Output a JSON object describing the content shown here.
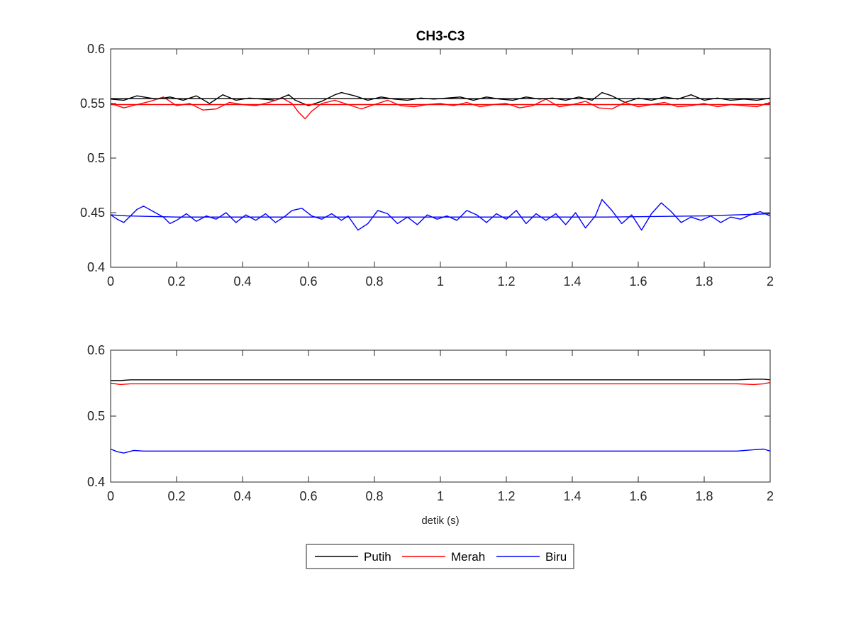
{
  "chart_data": [
    {
      "type": "line",
      "title": "CH3-C3",
      "xlabel": "",
      "ylabel": "",
      "xlim": [
        0,
        2
      ],
      "ylim": [
        0.4,
        0.6
      ],
      "xticks": [
        "0",
        "0.2",
        "0.4",
        "0.6",
        "0.8",
        "1",
        "1.2",
        "1.4",
        "1.6",
        "1.8",
        "2"
      ],
      "yticks": [
        "0.4",
        "0.45",
        "0.5",
        "0.55",
        "0.6"
      ],
      "grid": false,
      "series": [
        {
          "name": "Putih",
          "color": "#000000",
          "x": [
            0,
            0.04,
            0.08,
            0.1,
            0.14,
            0.18,
            0.22,
            0.26,
            0.3,
            0.34,
            0.38,
            0.42,
            0.46,
            0.5,
            0.54,
            0.56,
            0.6,
            0.64,
            0.68,
            0.7,
            0.74,
            0.78,
            0.82,
            0.86,
            0.9,
            0.94,
            0.98,
            1.02,
            1.06,
            1.1,
            1.14,
            1.18,
            1.22,
            1.26,
            1.3,
            1.34,
            1.38,
            1.42,
            1.46,
            1.49,
            1.52,
            1.56,
            1.6,
            1.64,
            1.68,
            1.72,
            1.76,
            1.8,
            1.84,
            1.88,
            1.92,
            1.96,
            2
          ],
          "y": [
            0.554,
            0.553,
            0.557,
            0.556,
            0.554,
            0.556,
            0.553,
            0.557,
            0.55,
            0.558,
            0.553,
            0.555,
            0.554,
            0.553,
            0.558,
            0.553,
            0.548,
            0.552,
            0.558,
            0.56,
            0.557,
            0.553,
            0.556,
            0.554,
            0.553,
            0.555,
            0.554,
            0.555,
            0.556,
            0.553,
            0.556,
            0.554,
            0.553,
            0.556,
            0.554,
            0.555,
            0.553,
            0.556,
            0.553,
            0.56,
            0.557,
            0.551,
            0.555,
            0.553,
            0.556,
            0.554,
            0.558,
            0.553,
            0.555,
            0.553,
            0.554,
            0.553,
            0.555
          ]
        },
        {
          "name": "Merah",
          "color": "#ff0000",
          "x": [
            0,
            0.04,
            0.08,
            0.12,
            0.16,
            0.2,
            0.24,
            0.28,
            0.32,
            0.36,
            0.4,
            0.44,
            0.48,
            0.52,
            0.55,
            0.57,
            0.59,
            0.61,
            0.64,
            0.68,
            0.72,
            0.76,
            0.8,
            0.84,
            0.88,
            0.92,
            0.96,
            1.0,
            1.04,
            1.08,
            1.12,
            1.16,
            1.2,
            1.24,
            1.28,
            1.32,
            1.36,
            1.4,
            1.44,
            1.48,
            1.52,
            1.56,
            1.6,
            1.64,
            1.68,
            1.72,
            1.76,
            1.8,
            1.84,
            1.88,
            1.92,
            1.96,
            2
          ],
          "y": [
            0.55,
            0.546,
            0.549,
            0.552,
            0.556,
            0.548,
            0.55,
            0.544,
            0.545,
            0.551,
            0.549,
            0.548,
            0.551,
            0.555,
            0.55,
            0.542,
            0.536,
            0.543,
            0.55,
            0.553,
            0.549,
            0.545,
            0.549,
            0.553,
            0.548,
            0.547,
            0.549,
            0.55,
            0.548,
            0.551,
            0.547,
            0.549,
            0.55,
            0.546,
            0.548,
            0.554,
            0.547,
            0.549,
            0.552,
            0.546,
            0.545,
            0.551,
            0.547,
            0.549,
            0.551,
            0.547,
            0.548,
            0.55,
            0.547,
            0.549,
            0.548,
            0.547,
            0.551
          ]
        },
        {
          "name": "Biru",
          "color": "#0000ff",
          "x": [
            0,
            0.02,
            0.04,
            0.06,
            0.08,
            0.1,
            0.13,
            0.16,
            0.18,
            0.2,
            0.23,
            0.26,
            0.29,
            0.32,
            0.35,
            0.38,
            0.41,
            0.44,
            0.47,
            0.5,
            0.53,
            0.55,
            0.58,
            0.61,
            0.64,
            0.67,
            0.7,
            0.72,
            0.75,
            0.78,
            0.81,
            0.84,
            0.87,
            0.9,
            0.93,
            0.96,
            0.99,
            1.02,
            1.05,
            1.08,
            1.11,
            1.14,
            1.17,
            1.2,
            1.23,
            1.26,
            1.29,
            1.32,
            1.35,
            1.38,
            1.41,
            1.44,
            1.47,
            1.49,
            1.52,
            1.55,
            1.58,
            1.61,
            1.64,
            1.67,
            1.7,
            1.73,
            1.76,
            1.79,
            1.82,
            1.85,
            1.88,
            1.91,
            1.94,
            1.97,
            2
          ],
          "y": [
            0.448,
            0.444,
            0.441,
            0.447,
            0.453,
            0.456,
            0.451,
            0.446,
            0.44,
            0.443,
            0.449,
            0.442,
            0.447,
            0.444,
            0.45,
            0.441,
            0.448,
            0.443,
            0.449,
            0.441,
            0.447,
            0.452,
            0.454,
            0.447,
            0.444,
            0.449,
            0.443,
            0.447,
            0.434,
            0.44,
            0.452,
            0.449,
            0.44,
            0.446,
            0.439,
            0.448,
            0.444,
            0.447,
            0.443,
            0.452,
            0.448,
            0.441,
            0.449,
            0.444,
            0.452,
            0.44,
            0.449,
            0.443,
            0.449,
            0.439,
            0.45,
            0.436,
            0.447,
            0.462,
            0.452,
            0.44,
            0.448,
            0.434,
            0.449,
            0.459,
            0.451,
            0.441,
            0.446,
            0.443,
            0.447,
            0.441,
            0.446,
            0.444,
            0.448,
            0.451,
            0.447
          ]
        },
        {
          "name": "",
          "color": "#000000",
          "x": [
            0,
            2
          ],
          "y": [
            0.5545,
            0.5545
          ]
        },
        {
          "name": "",
          "color": "#ff0000",
          "x": [
            0,
            2
          ],
          "y": [
            0.549,
            0.549
          ]
        },
        {
          "name": "",
          "color": "#0000ff",
          "x": [
            0,
            0.05,
            0.2,
            0.5,
            1.0,
            1.5,
            1.8,
            1.9,
            2
          ],
          "y": [
            0.448,
            0.447,
            0.446,
            0.446,
            0.446,
            0.446,
            0.447,
            0.448,
            0.449
          ]
        }
      ]
    },
    {
      "type": "line",
      "title": "",
      "xlabel": "detik (s)",
      "ylabel": "",
      "xlim": [
        0,
        2
      ],
      "ylim": [
        0.4,
        0.6
      ],
      "xticks": [
        "0",
        "0.2",
        "0.4",
        "0.6",
        "0.8",
        "1",
        "1.2",
        "1.4",
        "1.6",
        "1.8",
        "2"
      ],
      "yticks": [
        "0.4",
        "0.5",
        "0.6"
      ],
      "grid": false,
      "series": [
        {
          "name": "Putih",
          "color": "#000000",
          "x": [
            0,
            0.03,
            0.06,
            0.1,
            0.3,
            0.5,
            0.8,
            1.0,
            1.3,
            1.6,
            1.8,
            1.9,
            1.95,
            1.98,
            2
          ],
          "y": [
            0.554,
            0.554,
            0.555,
            0.555,
            0.555,
            0.555,
            0.555,
            0.555,
            0.555,
            0.555,
            0.555,
            0.555,
            0.556,
            0.556,
            0.555
          ]
        },
        {
          "name": "Merah",
          "color": "#ff0000",
          "x": [
            0,
            0.03,
            0.06,
            0.1,
            0.3,
            0.5,
            0.8,
            1.0,
            1.3,
            1.6,
            1.8,
            1.9,
            1.95,
            1.98,
            2
          ],
          "y": [
            0.55,
            0.548,
            0.549,
            0.549,
            0.549,
            0.549,
            0.549,
            0.549,
            0.549,
            0.549,
            0.549,
            0.549,
            0.548,
            0.549,
            0.551
          ]
        },
        {
          "name": "Biru",
          "color": "#0000ff",
          "x": [
            0,
            0.02,
            0.04,
            0.07,
            0.1,
            0.2,
            0.5,
            0.8,
            1.0,
            1.3,
            1.6,
            1.8,
            1.9,
            1.95,
            1.98,
            2
          ],
          "y": [
            0.45,
            0.446,
            0.444,
            0.448,
            0.447,
            0.447,
            0.447,
            0.447,
            0.447,
            0.447,
            0.447,
            0.447,
            0.447,
            0.449,
            0.45,
            0.447
          ]
        }
      ]
    }
  ],
  "legend": {
    "placement": "bottom",
    "items": [
      {
        "label": "Putih",
        "color": "#000000"
      },
      {
        "label": "Merah",
        "color": "#ff0000"
      },
      {
        "label": "Biru",
        "color": "#0000ff"
      }
    ]
  }
}
